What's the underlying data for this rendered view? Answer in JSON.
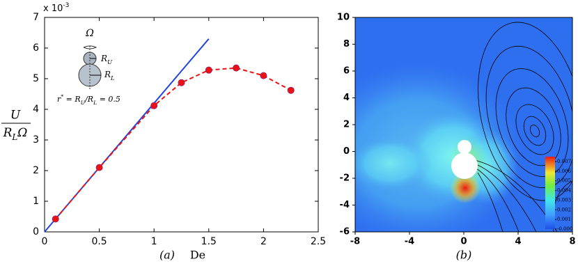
{
  "chart_data": [
    {
      "type": "line",
      "multiplier": "x 10^{-3}",
      "ylabel": {
        "top": "U",
        "bottom": "R_LΩ"
      },
      "panel_label": "(a)",
      "xlabel": "De",
      "xlim": [
        0,
        2.5
      ],
      "xticks": [
        0,
        0.5,
        1,
        1.5,
        2,
        2.5
      ],
      "ylim": [
        0,
        7
      ],
      "yticks": [
        0,
        1,
        2,
        3,
        4,
        5,
        6,
        7
      ],
      "inset": {
        "omega": "Ω",
        "upper": "R_U",
        "lower": "R_L",
        "ratio": "r^{*} = R_U/R_L = 0.5"
      },
      "series": [
        {
          "color": "#2244dd",
          "x": [
            0,
            1.5
          ],
          "values": [
            0,
            6.3
          ]
        },
        {
          "color": "#ee1111",
          "dashed": true,
          "markers": true,
          "x": [
            0.1,
            0.5,
            1,
            1.25,
            1.5,
            1.75,
            2,
            2.25
          ],
          "values": [
            0.42,
            2.1,
            4.12,
            4.87,
            5.28,
            5.35,
            5.1,
            4.62
          ]
        }
      ]
    },
    {
      "type": "field",
      "panel_label": "(b)",
      "xlim": [
        -8,
        8
      ],
      "xticks": [
        -8,
        -4,
        0,
        4,
        8
      ],
      "ylim": [
        -6,
        10
      ],
      "yticks": [
        -6,
        -4,
        -2,
        0,
        2,
        4,
        6,
        8,
        10
      ],
      "colorbar": {
        "lim": [
          0,
          0.0075
        ],
        "ticks": [
          0.007,
          0.006,
          0.005,
          0.004,
          0.003,
          0.002,
          0.001,
          {
            "value": 0,
            "label": "-0.000"
          }
        ]
      }
    }
  ]
}
